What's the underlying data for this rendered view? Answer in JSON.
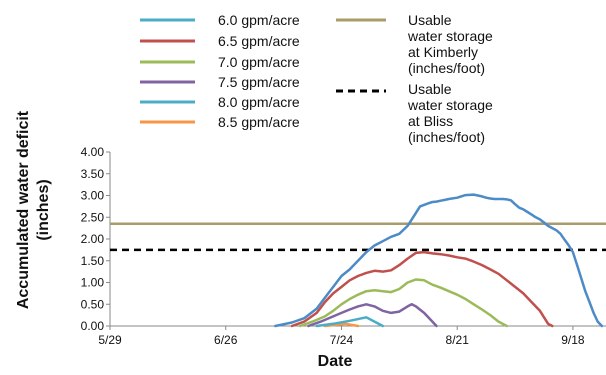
{
  "chart_data": {
    "type": "line",
    "title": "",
    "xlabel": "Date",
    "ylabel": "Accumulated water deficit (inches)",
    "ylabel_lines": [
      "Accumulated water deficit",
      "(inches)"
    ],
    "x_date_ticks": [
      "5/29",
      "6/26",
      "7/24",
      "8/21",
      "9/18"
    ],
    "x_tick_days": [
      0,
      28,
      56,
      84,
      112
    ],
    "xlim_days": [
      0,
      120
    ],
    "ylim": [
      0,
      4.0
    ],
    "y_ticks": [
      "0.00",
      "0.50",
      "1.00",
      "1.50",
      "2.00",
      "2.50",
      "3.00",
      "3.50",
      "4.00"
    ],
    "grid": false,
    "legend_position": "top",
    "series": [
      {
        "name": "6.0 gpm/acre",
        "color": "#4d8bc7",
        "x_days": [
          40,
          44,
          47,
          50,
          52,
          54,
          56,
          58,
          60,
          62,
          64,
          66,
          68,
          70,
          72,
          74,
          75,
          77,
          78,
          79,
          80,
          81,
          82,
          84,
          86,
          88,
          90,
          91,
          92,
          93,
          94,
          95,
          96,
          97,
          98,
          99,
          100,
          101,
          102,
          103,
          104,
          105,
          106,
          107,
          108,
          109,
          110,
          111,
          112,
          113,
          114,
          115,
          116,
          117,
          118,
          119
        ],
        "y": [
          0.0,
          0.08,
          0.18,
          0.4,
          0.65,
          0.9,
          1.15,
          1.3,
          1.5,
          1.7,
          1.85,
          1.95,
          2.05,
          2.12,
          2.3,
          2.6,
          2.75,
          2.82,
          2.85,
          2.86,
          2.88,
          2.9,
          2.92,
          2.95,
          3.01,
          3.02,
          2.98,
          2.95,
          2.93,
          2.92,
          2.92,
          2.92,
          2.91,
          2.89,
          2.8,
          2.72,
          2.68,
          2.62,
          2.56,
          2.5,
          2.45,
          2.38,
          2.3,
          2.25,
          2.2,
          2.12,
          1.98,
          1.85,
          1.7,
          1.4,
          1.1,
          0.8,
          0.55,
          0.3,
          0.1,
          0.0
        ]
      },
      {
        "name": "6.5 gpm/acre",
        "color": "#c0504d",
        "x_days": [
          44,
          47,
          50,
          52,
          54,
          56,
          58,
          60,
          62,
          64,
          66,
          68,
          70,
          72,
          74,
          76,
          78,
          80,
          82,
          84,
          86,
          88,
          90,
          92,
          94,
          96,
          98,
          100,
          102,
          104,
          105,
          106,
          107
        ],
        "y": [
          0.0,
          0.1,
          0.3,
          0.55,
          0.75,
          0.9,
          1.05,
          1.15,
          1.22,
          1.27,
          1.25,
          1.28,
          1.4,
          1.55,
          1.68,
          1.7,
          1.67,
          1.65,
          1.62,
          1.58,
          1.55,
          1.48,
          1.4,
          1.3,
          1.2,
          1.05,
          0.9,
          0.75,
          0.55,
          0.35,
          0.2,
          0.05,
          0.0
        ]
      },
      {
        "name": "7.0 gpm/acre",
        "color": "#9bbb59",
        "x_days": [
          46,
          49,
          52,
          54,
          56,
          58,
          60,
          62,
          64,
          66,
          68,
          70,
          72,
          74,
          76,
          78,
          80,
          82,
          84,
          86,
          88,
          90,
          92,
          94,
          96
        ],
        "y": [
          0.0,
          0.1,
          0.22,
          0.35,
          0.5,
          0.62,
          0.72,
          0.8,
          0.82,
          0.8,
          0.78,
          0.85,
          1.0,
          1.07,
          1.05,
          0.95,
          0.88,
          0.8,
          0.72,
          0.62,
          0.5,
          0.38,
          0.25,
          0.1,
          0.0
        ]
      },
      {
        "name": "7.5 gpm/acre",
        "color": "#8064a2",
        "x_days": [
          48,
          51,
          54,
          56,
          58,
          60,
          62,
          64,
          66,
          68,
          70,
          72,
          73,
          74,
          76,
          78,
          79
        ],
        "y": [
          0.0,
          0.1,
          0.22,
          0.3,
          0.38,
          0.45,
          0.5,
          0.45,
          0.35,
          0.3,
          0.33,
          0.45,
          0.5,
          0.45,
          0.3,
          0.1,
          0.0
        ]
      },
      {
        "name": "8.0 gpm/acre",
        "color": "#4bacc6",
        "x_days": [
          50,
          54,
          58,
          62,
          64,
          66
        ],
        "y": [
          0.0,
          0.05,
          0.12,
          0.2,
          0.1,
          0.0
        ]
      },
      {
        "name": "8.5 gpm/acre",
        "color": "#f79646",
        "x_days": [
          52,
          55,
          57,
          60
        ],
        "y": [
          0.0,
          0.03,
          0.05,
          0.0
        ]
      }
    ],
    "reference_lines": [
      {
        "name": "Usable water storage at Kimberly (inches/foot)",
        "label_lines": [
          "Usable",
          "water storage",
          "at Kimberly",
          "(inches/foot)"
        ],
        "y": 2.35,
        "color": "#a89a6a",
        "style": "solid"
      },
      {
        "name": "Usable water storage at Bliss (inches/foot)",
        "label_lines": [
          "Usable",
          "water storage",
          "at Bliss",
          "(inches/foot)"
        ],
        "y": 1.75,
        "color": "#000000",
        "style": "dashed"
      }
    ]
  }
}
